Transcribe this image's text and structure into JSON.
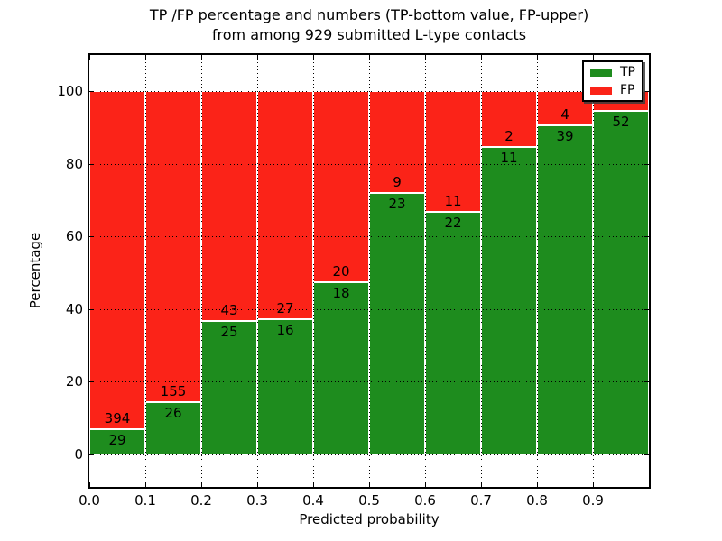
{
  "title": {
    "line1": "TP /FP percentage and numbers (TP-bottom value, FP-upper)",
    "line2": "from among 929 submitted L-type contacts"
  },
  "axes": {
    "x_label": "Predicted probability",
    "y_label": "Percentage",
    "x_ticks": [
      "0.0",
      "0.1",
      "0.2",
      "0.3",
      "0.4",
      "0.5",
      "0.6",
      "0.7",
      "0.8",
      "0.9"
    ],
    "y_ticks": [
      "0",
      "20",
      "40",
      "60",
      "80",
      "100"
    ]
  },
  "legend": {
    "items": [
      {
        "label": "TP",
        "color": "#1E8C1E"
      },
      {
        "label": "FP",
        "color": "#FB2318"
      }
    ]
  },
  "colors": {
    "tp": "#1E8C1E",
    "fp": "#FB2318",
    "grid": "#000000"
  },
  "chart_data": {
    "type": "bar",
    "stacked": true,
    "title": "TP /FP percentage and numbers (TP-bottom value, FP-upper) from among 929 submitted L-type contacts",
    "xlabel": "Predicted probability",
    "ylabel": "Percentage",
    "xlim": [
      0.0,
      1.0
    ],
    "ylim": [
      -9,
      110
    ],
    "grid": true,
    "legend_position": "upper right",
    "y_tick_values": [
      0,
      20,
      40,
      60,
      80,
      100
    ],
    "x_tick_values": [
      0.0,
      0.1,
      0.2,
      0.3,
      0.4,
      0.5,
      0.6,
      0.7,
      0.8,
      0.9
    ],
    "series_names": [
      "TP",
      "FP"
    ],
    "bars": [
      {
        "range": "0.0-0.1",
        "tp_label": "29",
        "fp_label": "394",
        "tp_pct": 6.9
      },
      {
        "range": "0.1-0.2",
        "tp_label": "26",
        "fp_label": "155",
        "tp_pct": 14.4
      },
      {
        "range": "0.2-0.3",
        "tp_label": "25",
        "fp_label": "43",
        "tp_pct": 36.8
      },
      {
        "range": "0.3-0.4",
        "tp_label": "16",
        "fp_label": "27",
        "tp_pct": 37.2
      },
      {
        "range": "0.4-0.5",
        "tp_label": "18",
        "fp_label": "20",
        "tp_pct": 47.4
      },
      {
        "range": "0.5-0.6",
        "tp_label": "23",
        "fp_label": "9",
        "tp_pct": 71.9
      },
      {
        "range": "0.6-0.7",
        "tp_label": "22",
        "fp_label": "11",
        "tp_pct": 66.7
      },
      {
        "range": "0.7-0.8",
        "tp_label": "11",
        "fp_label": "2",
        "tp_pct": 84.6
      },
      {
        "range": "0.8-0.9",
        "tp_label": "39",
        "fp_label": "4",
        "tp_pct": 90.7
      },
      {
        "range": "0.9-1.0",
        "tp_label": "52",
        "fp_label": "",
        "tp_pct": 94.5
      }
    ]
  }
}
